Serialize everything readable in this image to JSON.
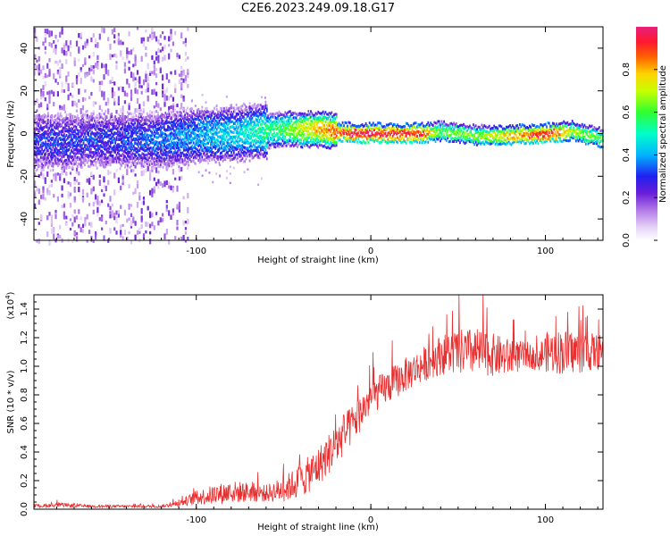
{
  "title": "C2E6.2023.249.09.18.G17",
  "colors": {
    "snr_line": "#e83030",
    "spec_low": "#7a1fd6",
    "spec_mid": "#00ffff",
    "spec_high": "#e8205a"
  },
  "chart_data": [
    {
      "type": "heatmap",
      "title": "C2E6.2023.249.09.18.G17",
      "xlabel": "Height of straight line (km)",
      "ylabel": "Frequency (Hz)",
      "xlim": [
        -193,
        133
      ],
      "ylim": [
        -50,
        50
      ],
      "xticks": [
        -100,
        0,
        100
      ],
      "xtick_labels": [
        "-100",
        "0",
        "100"
      ],
      "yticks": [
        -40,
        -20,
        0,
        20,
        40
      ],
      "ytick_labels": [
        "-40",
        "-20",
        "0",
        "20",
        "40"
      ],
      "colorbar": {
        "label": "Normalized spectral amplitude",
        "range": [
          0,
          1
        ],
        "ticks": [
          0.0,
          0.2,
          0.4,
          0.6,
          0.8
        ],
        "tick_labels": [
          "0.0",
          "0.2",
          "0.4",
          "0.6",
          "0.8"
        ],
        "colormap": "rainbow"
      },
      "ridge": {
        "description_points": [
          {
            "x": -190,
            "freq": -4,
            "amp": 0.3
          },
          {
            "x": -150,
            "freq": -3,
            "amp": 0.3
          },
          {
            "x": -120,
            "freq": -3,
            "amp": 0.35
          },
          {
            "x": -100,
            "freq": -1,
            "amp": 0.4
          },
          {
            "x": -75,
            "freq": 0,
            "amp": 0.45
          },
          {
            "x": -50,
            "freq": 2,
            "amp": 0.6
          },
          {
            "x": -30,
            "freq": 2,
            "amp": 0.8
          },
          {
            "x": -10,
            "freq": 0,
            "amp": 0.95
          },
          {
            "x": 10,
            "freq": 0,
            "amp": 0.95
          },
          {
            "x": 30,
            "freq": 0,
            "amp": 0.9
          },
          {
            "x": 40,
            "freq": 1,
            "amp": 0.6
          },
          {
            "x": 60,
            "freq": -1,
            "amp": 0.65
          },
          {
            "x": 80,
            "freq": -1,
            "amp": 0.8
          },
          {
            "x": 100,
            "freq": 0,
            "amp": 0.95
          },
          {
            "x": 115,
            "freq": 1,
            "amp": 0.7
          },
          {
            "x": 130,
            "freq": -2,
            "amp": 0.6
          }
        ]
      }
    },
    {
      "type": "line",
      "xlabel": "Height of straight line (km)",
      "ylabel": "SNR (10 * v/v)",
      "y_multiplier_label": "(x10",
      "y_multiplier_exp": "4",
      "y_multiplier_close": ")",
      "xlim": [
        -193,
        133
      ],
      "ylim": [
        0,
        1.5
      ],
      "xticks": [
        -100,
        0,
        100
      ],
      "xtick_labels": [
        "-100",
        "0",
        "100"
      ],
      "yticks": [
        0.0,
        0.2,
        0.4,
        0.6,
        0.8,
        1.0,
        1.2,
        1.4
      ],
      "ytick_labels": [
        "0.0",
        "0.2",
        "0.4",
        "0.6",
        "0.8",
        "1.0",
        "1.2",
        "1.4"
      ],
      "series": [
        {
          "x": [
            -193,
            -180,
            -160,
            -140,
            -120,
            -110,
            -100,
            -90,
            -80,
            -70,
            -60,
            -50,
            -40,
            -30,
            -20,
            -10,
            0,
            10,
            20,
            30,
            40,
            50,
            60,
            70,
            80,
            90,
            95,
            100,
            110,
            120,
            133
          ],
          "y": [
            0.02,
            0.03,
            0.02,
            0.02,
            0.02,
            0.04,
            0.08,
            0.1,
            0.12,
            0.12,
            0.11,
            0.14,
            0.2,
            0.3,
            0.45,
            0.6,
            0.78,
            0.86,
            0.94,
            1.01,
            1.08,
            1.1,
            1.1,
            1.08,
            1.06,
            1.08,
            1.05,
            1.1,
            1.1,
            1.1,
            1.1
          ],
          "noise": [
            0.01,
            0.015,
            0.01,
            0.01,
            0.01,
            0.02,
            0.05,
            0.07,
            0.08,
            0.07,
            0.06,
            0.09,
            0.12,
            0.14,
            0.15,
            0.14,
            0.12,
            0.12,
            0.12,
            0.12,
            0.14,
            0.16,
            0.17,
            0.15,
            0.13,
            0.09,
            0.08,
            0.14,
            0.16,
            0.15,
            0.12
          ]
        }
      ]
    }
  ]
}
